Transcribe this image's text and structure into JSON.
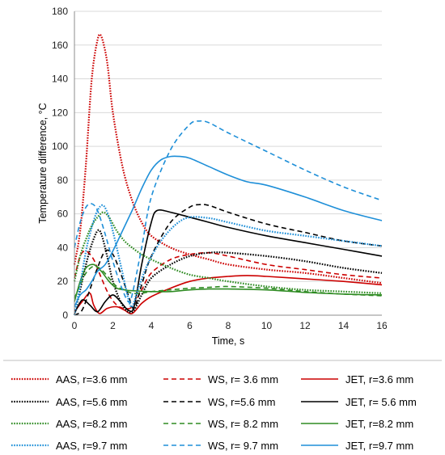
{
  "chart_data": {
    "type": "line",
    "xlabel": "Time, s",
    "ylabel": "Temperature difference, °C",
    "xlim": [
      0,
      16
    ],
    "ylim": [
      0,
      180
    ],
    "xticks": [
      0,
      2,
      4,
      6,
      8,
      10,
      12,
      14,
      16
    ],
    "yticks": [
      0,
      20,
      40,
      60,
      80,
      100,
      120,
      140,
      160,
      180
    ],
    "grid": "horizontal",
    "legend_position": "bottom",
    "series": [
      {
        "name": "AAS, r=3.6 mm",
        "color": "#cc0000",
        "style": "dotted",
        "points": [
          [
            0,
            30
          ],
          [
            0.3,
            50
          ],
          [
            0.6,
            90
          ],
          [
            0.9,
            140
          ],
          [
            1.2,
            163
          ],
          [
            1.4,
            165
          ],
          [
            1.7,
            150
          ],
          [
            2.0,
            120
          ],
          [
            2.5,
            88
          ],
          [
            3.0,
            68
          ],
          [
            3.5,
            55
          ],
          [
            4,
            47
          ],
          [
            5,
            40
          ],
          [
            6,
            36
          ],
          [
            7,
            33
          ],
          [
            8,
            30
          ],
          [
            10,
            27
          ],
          [
            12,
            25
          ],
          [
            14,
            22
          ],
          [
            16,
            19
          ]
        ]
      },
      {
        "name": "WS, r= 3.6 mm",
        "color": "#cc0000",
        "style": "dashed",
        "points": [
          [
            0,
            22
          ],
          [
            0.3,
            35
          ],
          [
            0.6,
            38
          ],
          [
            1.0,
            33
          ],
          [
            1.4,
            22
          ],
          [
            1.8,
            12
          ],
          [
            2.2,
            6
          ],
          [
            2.6,
            4
          ],
          [
            3.0,
            5
          ],
          [
            3.5,
            15
          ],
          [
            4.0,
            25
          ],
          [
            5,
            33
          ],
          [
            6,
            36
          ],
          [
            7,
            37
          ],
          [
            8,
            35
          ],
          [
            10,
            30
          ],
          [
            12,
            27
          ],
          [
            14,
            24
          ],
          [
            16,
            22
          ]
        ]
      },
      {
        "name": "JET, r=3.6 mm",
        "color": "#cc0000",
        "style": "solid",
        "points": [
          [
            0,
            2
          ],
          [
            0.4,
            8
          ],
          [
            0.8,
            13
          ],
          [
            1.0,
            6
          ],
          [
            1.3,
            1
          ],
          [
            1.7,
            4
          ],
          [
            2.2,
            5
          ],
          [
            2.6,
            3
          ],
          [
            3.0,
            1
          ],
          [
            3.5,
            7
          ],
          [
            4,
            11
          ],
          [
            5,
            16
          ],
          [
            6,
            20
          ],
          [
            7,
            22
          ],
          [
            8,
            23
          ],
          [
            9,
            23.5
          ],
          [
            10,
            23
          ],
          [
            12,
            21.5
          ],
          [
            14,
            20
          ],
          [
            16,
            18
          ]
        ]
      },
      {
        "name": "AAS, r=5.6 mm",
        "color": "#000000",
        "style": "dotted",
        "points": [
          [
            0,
            0
          ],
          [
            0.3,
            15
          ],
          [
            0.6,
            30
          ],
          [
            0.9,
            42
          ],
          [
            1.2,
            50
          ],
          [
            1.4,
            48
          ],
          [
            1.7,
            35
          ],
          [
            2.0,
            20
          ],
          [
            2.4,
            8
          ],
          [
            2.8,
            2
          ],
          [
            3.1,
            3
          ],
          [
            3.5,
            12
          ],
          [
            4.0,
            22
          ],
          [
            5,
            30
          ],
          [
            6,
            35
          ],
          [
            7,
            37
          ],
          [
            8,
            37
          ],
          [
            10,
            35
          ],
          [
            12,
            32
          ],
          [
            14,
            28
          ],
          [
            16,
            25
          ]
        ]
      },
      {
        "name": "WS, r=5.6 mm",
        "color": "#000000",
        "style": "dashed",
        "points": [
          [
            0,
            0
          ],
          [
            0.4,
            3
          ],
          [
            0.8,
            15
          ],
          [
            1.2,
            28
          ],
          [
            1.6,
            38
          ],
          [
            2.0,
            36
          ],
          [
            2.4,
            25
          ],
          [
            2.8,
            12
          ],
          [
            3.1,
            4
          ],
          [
            3.5,
            18
          ],
          [
            4.0,
            35
          ],
          [
            5,
            55
          ],
          [
            6,
            64
          ],
          [
            6.5,
            65.5
          ],
          [
            7,
            65
          ],
          [
            8,
            61
          ],
          [
            10,
            54
          ],
          [
            12,
            49
          ],
          [
            14,
            44
          ],
          [
            16,
            41
          ]
        ]
      },
      {
        "name": "JET, r= 5.6 mm",
        "color": "#000000",
        "style": "solid",
        "points": [
          [
            0,
            1
          ],
          [
            0.4,
            9
          ],
          [
            0.8,
            6
          ],
          [
            1.2,
            2
          ],
          [
            1.6,
            8
          ],
          [
            2.0,
            12
          ],
          [
            2.4,
            8
          ],
          [
            2.8,
            3
          ],
          [
            3.1,
            5
          ],
          [
            3.5,
            30
          ],
          [
            4.0,
            55
          ],
          [
            4.3,
            62
          ],
          [
            5,
            61
          ],
          [
            6,
            58
          ],
          [
            7,
            55
          ],
          [
            8,
            52
          ],
          [
            10,
            47
          ],
          [
            12,
            43
          ],
          [
            14,
            39
          ],
          [
            16,
            35
          ]
        ]
      },
      {
        "name": "AAS, r=8.2 mm",
        "color": "#2e8b22",
        "style": "dotted",
        "points": [
          [
            0,
            20
          ],
          [
            0.3,
            35
          ],
          [
            0.6,
            45
          ],
          [
            0.9,
            53
          ],
          [
            1.2,
            58
          ],
          [
            1.5,
            61
          ],
          [
            1.8,
            58
          ],
          [
            2.2,
            50
          ],
          [
            2.6,
            44
          ],
          [
            3.0,
            40
          ],
          [
            3.5,
            36
          ],
          [
            4,
            33
          ],
          [
            5,
            28
          ],
          [
            6,
            24
          ],
          [
            7,
            22
          ],
          [
            8,
            20
          ],
          [
            10,
            17
          ],
          [
            12,
            15
          ],
          [
            14,
            14
          ],
          [
            16,
            13
          ]
        ]
      },
      {
        "name": "WS, r= 8.2 mm",
        "color": "#2e8b22",
        "style": "dashed",
        "points": [
          [
            0,
            10
          ],
          [
            0.3,
            18
          ],
          [
            0.6,
            25
          ],
          [
            1.0,
            29
          ],
          [
            1.4,
            27
          ],
          [
            1.8,
            22
          ],
          [
            2.2,
            17
          ],
          [
            2.6,
            15
          ],
          [
            3.0,
            13
          ],
          [
            3.5,
            13
          ],
          [
            4,
            14
          ],
          [
            5,
            15
          ],
          [
            6,
            16
          ],
          [
            7,
            16.5
          ],
          [
            8,
            17
          ],
          [
            10,
            16
          ],
          [
            12,
            14
          ],
          [
            14,
            12.5
          ],
          [
            16,
            11.5
          ]
        ]
      },
      {
        "name": "JET, r=8.2 mm",
        "color": "#2e8b22",
        "style": "solid",
        "points": [
          [
            0,
            8
          ],
          [
            0.3,
            20
          ],
          [
            0.6,
            28
          ],
          [
            1.0,
            30
          ],
          [
            1.4,
            26
          ],
          [
            1.8,
            20
          ],
          [
            2.2,
            16
          ],
          [
            2.6,
            15
          ],
          [
            3.0,
            14.5
          ],
          [
            4,
            14
          ],
          [
            5,
            14
          ],
          [
            6,
            15
          ],
          [
            7,
            15.5
          ],
          [
            8,
            15.5
          ],
          [
            10,
            15
          ],
          [
            12,
            13.5
          ],
          [
            14,
            12.5
          ],
          [
            16,
            12
          ]
        ]
      },
      {
        "name": "AAS, r=9.7 mm",
        "color": "#1e8fd8",
        "style": "dotted",
        "points": [
          [
            0,
            0
          ],
          [
            0.3,
            18
          ],
          [
            0.6,
            38
          ],
          [
            0.9,
            52
          ],
          [
            1.2,
            62
          ],
          [
            1.5,
            65
          ],
          [
            1.8,
            58
          ],
          [
            2.1,
            45
          ],
          [
            2.5,
            25
          ],
          [
            2.8,
            10
          ],
          [
            3.0,
            5
          ],
          [
            3.3,
            15
          ],
          [
            3.8,
            30
          ],
          [
            4.5,
            44
          ],
          [
            5.3,
            54
          ],
          [
            6,
            58
          ],
          [
            7,
            57.5
          ],
          [
            8,
            55
          ],
          [
            10,
            50
          ],
          [
            12,
            47
          ],
          [
            14,
            44
          ],
          [
            16,
            41
          ]
        ]
      },
      {
        "name": "WS, r= 9.7 mm",
        "color": "#1e8fd8",
        "style": "dashed",
        "points": [
          [
            0,
            40
          ],
          [
            0.3,
            55
          ],
          [
            0.6,
            64
          ],
          [
            0.9,
            66
          ],
          [
            1.2,
            62
          ],
          [
            1.6,
            48
          ],
          [
            2.0,
            32
          ],
          [
            2.4,
            18
          ],
          [
            2.8,
            8
          ],
          [
            3.0,
            12
          ],
          [
            3.5,
            40
          ],
          [
            4,
            70
          ],
          [
            5,
            98
          ],
          [
            6,
            113
          ],
          [
            6.5,
            115
          ],
          [
            7,
            114
          ],
          [
            8,
            108
          ],
          [
            10,
            97
          ],
          [
            12,
            86
          ],
          [
            14,
            76
          ],
          [
            16,
            68
          ]
        ]
      },
      {
        "name": "JET, r=9.7 mm",
        "color": "#1e8fd8",
        "style": "solid",
        "points": [
          [
            0,
            5
          ],
          [
            0.3,
            12
          ],
          [
            0.6,
            15
          ],
          [
            0.9,
            20
          ],
          [
            1.2,
            26
          ],
          [
            1.6,
            30
          ],
          [
            2.0,
            38
          ],
          [
            2.5,
            50
          ],
          [
            3.0,
            62
          ],
          [
            3.5,
            75
          ],
          [
            4,
            86
          ],
          [
            4.5,
            92
          ],
          [
            5,
            94
          ],
          [
            5.5,
            94
          ],
          [
            6,
            93
          ],
          [
            7,
            88
          ],
          [
            8,
            83
          ],
          [
            9,
            79
          ],
          [
            10,
            77
          ],
          [
            12,
            70
          ],
          [
            14,
            62
          ],
          [
            16,
            56
          ]
        ]
      }
    ]
  }
}
